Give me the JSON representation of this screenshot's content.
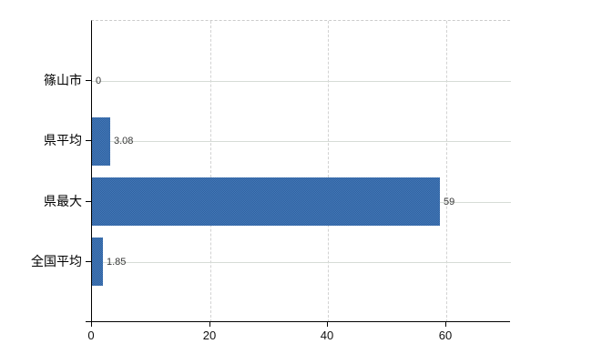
{
  "chart": {
    "background": "#ffffff",
    "bar_fill": "#3a6dac",
    "bar_fill_light": "#4478b8",
    "bar_fill_dark": "#2f62a0",
    "axis_color": "#000000",
    "horizontal_grid_color": "#d6dcd6",
    "vertical_grid_color": "#d2d2d2",
    "top_border_style": "dashed",
    "value_label_color": "#3a3a3a"
  },
  "chart_data": {
    "type": "bar",
    "orientation": "horizontal",
    "title": "",
    "xlabel": "",
    "ylabel": "",
    "legend": "none",
    "grid": "on",
    "categories": [
      "篠山市",
      "県平均",
      "県最大",
      "全国平均"
    ],
    "values": [
      0,
      3.08,
      59,
      1.85
    ],
    "value_labels": [
      "0",
      "3.08",
      "59",
      "1.85"
    ],
    "x_ticks": [
      0,
      20,
      40,
      60
    ],
    "x_tick_labels": [
      "0",
      "20",
      "40",
      "60"
    ],
    "xlim": [
      0,
      71
    ]
  }
}
